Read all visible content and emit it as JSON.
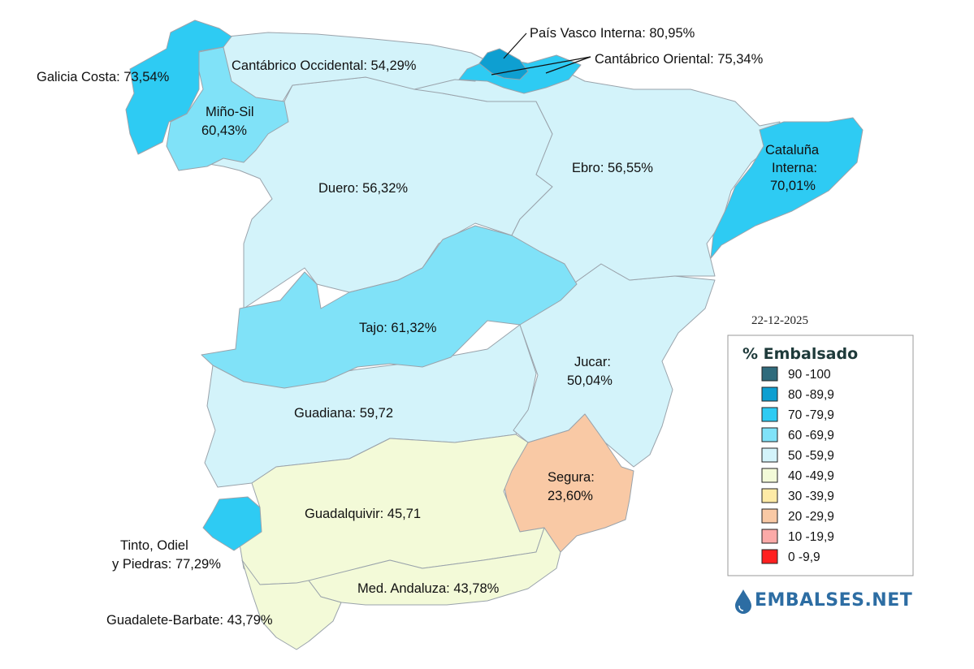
{
  "date": "22-12-2025",
  "legend": {
    "title": "% Embalsado",
    "items": [
      {
        "range": "90 -100",
        "color": "#2f6b7c"
      },
      {
        "range": "80 -89,9",
        "color": "#0e9fd1"
      },
      {
        "range": "70 -79,9",
        "color": "#2ecbf3"
      },
      {
        "range": "60 -69,9",
        "color": "#80e2f8"
      },
      {
        "range": "50 -59,9",
        "color": "#d3f3fa"
      },
      {
        "range": "40 -49,9",
        "color": "#f3fad8"
      },
      {
        "range": "30 -39,9",
        "color": "#fdeaa6"
      },
      {
        "range": "20 -29,9",
        "color": "#f9c9a5"
      },
      {
        "range": "10 -19,9",
        "color": "#fbaaa8"
      },
      {
        "range": "0 -9,9",
        "color": "#ff2020"
      }
    ]
  },
  "basins": {
    "galicia": {
      "label": "Galicia Costa: 73,54%",
      "value": 73.54,
      "color": "#2ecbf3"
    },
    "mino_sil": {
      "label_1": "Miño-Sil",
      "label_2": "60,43%",
      "value": 60.43,
      "color": "#80e2f8"
    },
    "cantabrico_occ": {
      "label": "Cantábrico Occidental: 54,29%",
      "value": 54.29,
      "color": "#d3f3fa"
    },
    "pais_vasco": {
      "label": "País Vasco Interna: 80,95%",
      "value": 80.95,
      "color": "#0e9fd1"
    },
    "cantabrico_or": {
      "label": "Cantábrico Oriental: 75,34%",
      "value": 75.34,
      "color": "#2ecbf3"
    },
    "duero": {
      "label": "Duero: 56,32%",
      "value": 56.32,
      "color": "#d3f3fa"
    },
    "ebro": {
      "label": "Ebro: 56,55%",
      "value": 56.55,
      "color": "#d3f3fa"
    },
    "cataluna": {
      "label_1": "Cataluña",
      "label_2": "Interna:",
      "label_3": "70,01%",
      "value": 70.01,
      "color": "#2ecbf3"
    },
    "tajo": {
      "label": "Tajo: 61,32%",
      "value": 61.32,
      "color": "#80e2f8"
    },
    "jucar": {
      "label_1": "Jucar:",
      "label_2": "50,04%",
      "value": 50.04,
      "color": "#d3f3fa"
    },
    "guadiana": {
      "label": "Guadiana: 59,72",
      "value": 59.72,
      "color": "#d3f3fa"
    },
    "segura": {
      "label_1": "Segura:",
      "label_2": "23,60%",
      "value": 23.6,
      "color": "#f9c9a5"
    },
    "guadalquivir": {
      "label": "Guadalquivir: 45,71",
      "value": 45.71,
      "color": "#f3fad8"
    },
    "tinto": {
      "label_1": "Tinto, Odiel",
      "label_2": "y Piedras: 77,29%",
      "value": 77.29,
      "color": "#2ecbf3"
    },
    "med_andaluza": {
      "label": "Med. Andaluza: 43,78%",
      "value": 43.78,
      "color": "#f3fad8"
    },
    "guadalete": {
      "label": "Guadalete-Barbate: 43,79%",
      "value": 43.79,
      "color": "#f3fad8"
    }
  },
  "logo": {
    "text": "EMBALSES.NET",
    "color": "#2d6da3"
  }
}
